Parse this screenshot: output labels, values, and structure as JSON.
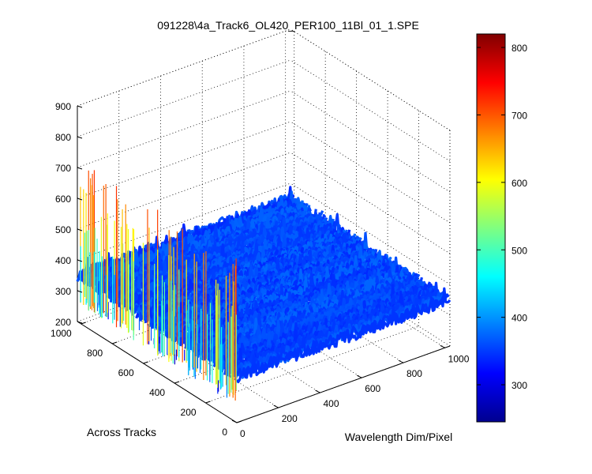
{
  "chart_data": {
    "type": "surface",
    "title": "091228\\4a_Track6_OL420_PER100_11Bl_01_1.SPE",
    "xlabel": "Wavelength Dim/Pixel",
    "ylabel": "Across Tracks",
    "zlabel": "",
    "xlim": [
      0,
      1024
    ],
    "ylim": [
      0,
      1024
    ],
    "zlim": [
      200,
      900
    ],
    "x_ticks": [
      "0",
      "200",
      "400",
      "600",
      "800",
      "1000"
    ],
    "y_ticks": [
      "0",
      "200",
      "400",
      "600",
      "800",
      "1000"
    ],
    "z_ticks": [
      "200",
      "300",
      "400",
      "500",
      "600",
      "700",
      "800",
      "900"
    ],
    "colorbar": {
      "ticks": [
        "300",
        "400",
        "500",
        "600",
        "700",
        "800"
      ],
      "range": [
        245,
        820
      ],
      "colormap": "jet"
    },
    "grid": true,
    "baseline_level": 350,
    "noise_amplitude": 40,
    "edge_peaks": {
      "x_position": 0,
      "min": 280,
      "max": 720
    }
  }
}
